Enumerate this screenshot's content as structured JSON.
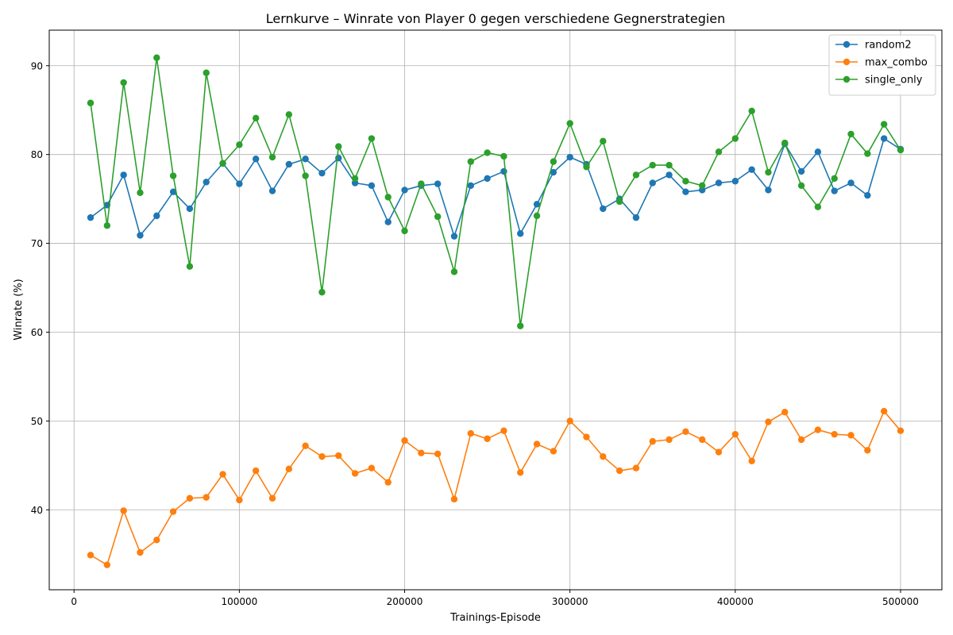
{
  "chart_data": {
    "type": "line",
    "title": "Lernkurve – Winrate von Player 0 gegen verschiedene Gegnerstrategien",
    "xlabel": "Trainings-Episode",
    "ylabel": "Winrate (%)",
    "xlim": [
      -15000,
      525000
    ],
    "ylim": [
      31,
      94
    ],
    "xticks": [
      0,
      100000,
      200000,
      300000,
      400000,
      500000
    ],
    "yticks": [
      40,
      50,
      60,
      70,
      80,
      90
    ],
    "grid": true,
    "legend_position": "top-right",
    "x": [
      10000,
      20000,
      30000,
      40000,
      50000,
      60000,
      70000,
      80000,
      90000,
      100000,
      110000,
      120000,
      130000,
      140000,
      150000,
      160000,
      170000,
      180000,
      190000,
      200000,
      210000,
      220000,
      230000,
      240000,
      250000,
      260000,
      270000,
      280000,
      290000,
      300000,
      310000,
      320000,
      330000,
      340000,
      350000,
      360000,
      370000,
      380000,
      390000,
      400000,
      410000,
      420000,
      430000,
      440000,
      450000,
      460000,
      470000,
      480000,
      490000,
      500000
    ],
    "series": [
      {
        "name": "random2",
        "color": "#1f77b4",
        "values": [
          72.9,
          74.3,
          77.7,
          70.9,
          73.1,
          75.8,
          73.9,
          76.9,
          79.0,
          76.7,
          79.5,
          75.9,
          78.9,
          79.5,
          77.9,
          79.6,
          76.8,
          76.5,
          72.4,
          76.0,
          76.5,
          76.7,
          70.8,
          76.5,
          77.3,
          78.1,
          71.1,
          74.4,
          78.0,
          79.7,
          78.9,
          73.9,
          75.0,
          72.9,
          76.8,
          77.7,
          75.8,
          76.0,
          76.8,
          77.0,
          78.3,
          76.0,
          81.2,
          78.1,
          80.3,
          75.9,
          76.8,
          75.4,
          81.8,
          80.6
        ]
      },
      {
        "name": "max_combo",
        "color": "#ff7f0e",
        "values": [
          34.9,
          33.8,
          39.9,
          35.2,
          36.6,
          39.8,
          41.3,
          41.4,
          44.0,
          41.1,
          44.4,
          41.3,
          44.6,
          47.2,
          46.0,
          46.1,
          44.1,
          44.7,
          43.1,
          47.8,
          46.4,
          46.3,
          41.2,
          48.6,
          48.0,
          48.9,
          44.2,
          47.4,
          46.6,
          50.0,
          48.2,
          46.0,
          44.4,
          44.7,
          47.7,
          47.9,
          48.8,
          47.9,
          46.5,
          48.5,
          45.5,
          49.9,
          51.0,
          47.9,
          49.0,
          48.5,
          48.4,
          46.7,
          51.1,
          48.9
        ]
      },
      {
        "name": "single_only",
        "color": "#2ca02c",
        "values": [
          85.8,
          72.0,
          88.1,
          75.7,
          90.9,
          77.6,
          67.4,
          89.2,
          79.0,
          81.1,
          84.1,
          79.7,
          84.5,
          77.6,
          64.5,
          80.9,
          77.3,
          81.8,
          75.2,
          71.4,
          76.7,
          73.0,
          66.8,
          79.2,
          80.2,
          79.8,
          60.7,
          73.1,
          79.2,
          83.5,
          78.6,
          81.5,
          74.7,
          77.7,
          78.8,
          78.8,
          77.0,
          76.5,
          80.3,
          81.8,
          84.9,
          78.0,
          81.3,
          76.5,
          74.1,
          77.3,
          82.3,
          80.1,
          83.4,
          80.5
        ]
      }
    ]
  }
}
